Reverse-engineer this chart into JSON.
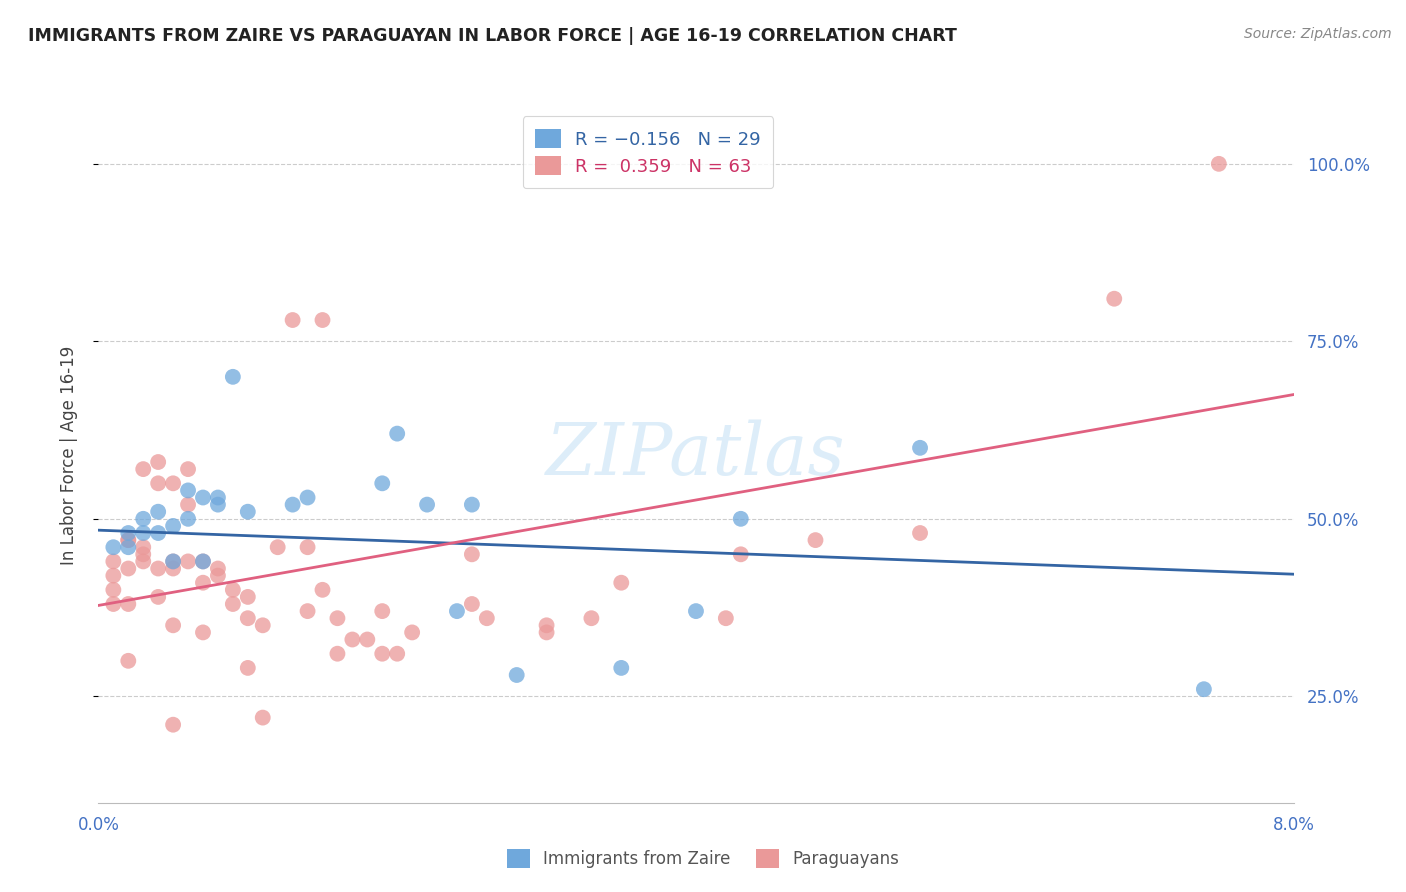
{
  "title": "IMMIGRANTS FROM ZAIRE VS PARAGUAYAN IN LABOR FORCE | AGE 16-19 CORRELATION CHART",
  "source": "Source: ZipAtlas.com",
  "ylabel": "In Labor Force | Age 16-19",
  "ytick_labels": [
    "25.0%",
    "50.0%",
    "75.0%",
    "100.0%"
  ],
  "ytick_values": [
    0.25,
    0.5,
    0.75,
    1.0
  ],
  "xmin": 0.0,
  "xmax": 0.08,
  "ymin": 0.1,
  "ymax": 1.08,
  "watermark": "ZIPatlas",
  "legend_blue_label": "Immigrants from Zaire",
  "legend_pink_label": "Paraguayans",
  "blue_color": "#6fa8dc",
  "pink_color": "#ea9999",
  "blue_line_color": "#3465a4",
  "pink_line_color": "#e06080",
  "background_color": "#ffffff",
  "grid_color": "#cccccc",
  "title_color": "#222222",
  "axis_label_color": "#4472c4",
  "blue_scatter_x": [
    0.001,
    0.002,
    0.002,
    0.003,
    0.003,
    0.004,
    0.004,
    0.005,
    0.005,
    0.006,
    0.006,
    0.007,
    0.007,
    0.008,
    0.008,
    0.009,
    0.01,
    0.013,
    0.014,
    0.019,
    0.02,
    0.022,
    0.024,
    0.025,
    0.028,
    0.035,
    0.04,
    0.043,
    0.055,
    0.074
  ],
  "blue_scatter_y": [
    0.46,
    0.48,
    0.46,
    0.48,
    0.5,
    0.48,
    0.51,
    0.49,
    0.44,
    0.54,
    0.5,
    0.44,
    0.53,
    0.52,
    0.53,
    0.7,
    0.51,
    0.52,
    0.53,
    0.55,
    0.62,
    0.52,
    0.37,
    0.52,
    0.28,
    0.29,
    0.37,
    0.5,
    0.6,
    0.26
  ],
  "pink_scatter_x": [
    0.001,
    0.001,
    0.001,
    0.001,
    0.002,
    0.002,
    0.002,
    0.002,
    0.002,
    0.003,
    0.003,
    0.003,
    0.003,
    0.004,
    0.004,
    0.004,
    0.004,
    0.005,
    0.005,
    0.005,
    0.005,
    0.005,
    0.006,
    0.006,
    0.006,
    0.007,
    0.007,
    0.007,
    0.008,
    0.008,
    0.009,
    0.009,
    0.01,
    0.01,
    0.01,
    0.011,
    0.011,
    0.012,
    0.013,
    0.014,
    0.014,
    0.015,
    0.015,
    0.016,
    0.016,
    0.017,
    0.018,
    0.019,
    0.019,
    0.02,
    0.021,
    0.025,
    0.025,
    0.026,
    0.03,
    0.03,
    0.033,
    0.035,
    0.042,
    0.043,
    0.048,
    0.055,
    0.068,
    0.075
  ],
  "pink_scatter_y": [
    0.44,
    0.42,
    0.4,
    0.38,
    0.47,
    0.43,
    0.47,
    0.38,
    0.3,
    0.45,
    0.46,
    0.44,
    0.57,
    0.55,
    0.58,
    0.43,
    0.39,
    0.55,
    0.44,
    0.43,
    0.35,
    0.21,
    0.57,
    0.52,
    0.44,
    0.44,
    0.41,
    0.34,
    0.43,
    0.42,
    0.4,
    0.38,
    0.39,
    0.36,
    0.29,
    0.35,
    0.22,
    0.46,
    0.78,
    0.46,
    0.37,
    0.4,
    0.78,
    0.36,
    0.31,
    0.33,
    0.33,
    0.31,
    0.37,
    0.31,
    0.34,
    0.45,
    0.38,
    0.36,
    0.35,
    0.34,
    0.36,
    0.41,
    0.36,
    0.45,
    0.47,
    0.48,
    0.81,
    1.0
  ],
  "blue_line_x0": 0.0,
  "blue_line_x1": 0.08,
  "blue_line_y0": 0.484,
  "blue_line_y1": 0.422,
  "pink_line_x0": 0.0,
  "pink_line_x1": 0.08,
  "pink_line_y0": 0.378,
  "pink_line_y1": 0.675
}
